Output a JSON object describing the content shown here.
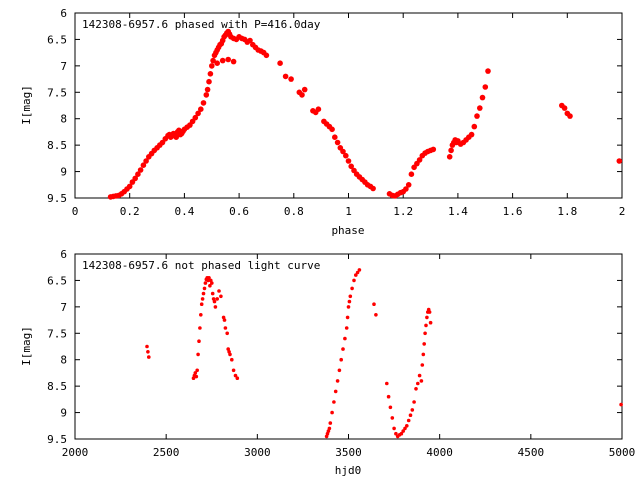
{
  "chart_data": [
    {
      "type": "scatter",
      "title": "142308-6957.6 phased with P=416.0day",
      "xlabel": "phase",
      "ylabel": "I[mag]",
      "xlim": [
        0,
        2
      ],
      "ylim": [
        9.5,
        6
      ],
      "y_inverted": true,
      "xticks": [
        "0",
        "0.2",
        "0.4",
        "0.6",
        "0.8",
        "1",
        "1.2",
        "1.4",
        "1.6",
        "1.8",
        "2"
      ],
      "yticks": [
        "6",
        "6.5",
        "7",
        "7.5",
        "8",
        "8.5",
        "9",
        "9.5"
      ],
      "grid": false,
      "marker_color": "#ff0000",
      "series": [
        {
          "x": [
            0.13,
            0.14,
            0.15,
            0.16,
            0.17,
            0.18,
            0.19,
            0.2,
            0.21,
            0.22,
            0.23,
            0.24,
            0.25,
            0.26,
            0.27,
            0.28,
            0.29,
            0.3,
            0.31,
            0.32,
            0.33,
            0.34,
            0.345,
            0.35,
            0.355,
            0.36,
            0.365,
            0.37,
            0.375,
            0.38,
            0.385,
            0.39,
            0.395,
            0.4,
            0.41,
            0.42,
            0.43,
            0.44,
            0.45,
            0.46,
            0.47,
            0.48,
            0.485,
            0.49,
            0.495,
            0.5,
            0.505,
            0.51,
            0.515,
            0.52,
            0.525,
            0.53,
            0.535,
            0.54,
            0.545,
            0.55,
            0.555,
            0.56,
            0.565,
            0.57,
            0.58,
            0.59,
            0.6,
            0.61,
            0.62,
            0.63,
            0.64,
            0.65,
            0.66,
            0.67,
            0.68,
            0.69,
            0.7,
            0.52,
            0.54,
            0.56,
            0.58,
            0.75,
            0.77,
            0.79,
            0.82,
            0.83,
            0.84,
            0.87,
            0.88,
            0.89,
            0.91,
            0.92,
            0.93,
            0.94,
            0.95,
            0.96,
            0.97,
            0.98,
            0.99,
            1.0,
            1.01,
            1.02,
            1.03,
            1.04,
            1.05,
            1.06,
            1.07,
            1.08,
            1.09,
            1.15,
            1.16,
            1.17,
            1.18,
            1.19,
            1.2,
            1.21,
            1.22,
            1.23,
            1.24,
            1.25,
            1.26,
            1.27,
            1.28,
            1.29,
            1.3,
            1.31,
            1.37,
            1.375,
            1.38,
            1.385,
            1.39,
            1.395,
            1.4,
            1.41,
            1.42,
            1.43,
            1.44,
            1.45,
            1.46,
            1.47,
            1.48,
            1.49,
            1.5,
            1.51,
            1.78,
            1.79,
            1.8,
            1.81,
            1.99
          ],
          "y": [
            9.48,
            9.47,
            9.46,
            9.45,
            9.42,
            9.38,
            9.33,
            9.28,
            9.2,
            9.13,
            9.05,
            8.97,
            8.88,
            8.8,
            8.72,
            8.66,
            8.6,
            8.55,
            8.5,
            8.45,
            8.38,
            8.32,
            8.3,
            8.35,
            8.32,
            8.28,
            8.3,
            8.35,
            8.25,
            8.22,
            8.3,
            8.28,
            8.24,
            8.2,
            8.16,
            8.12,
            8.05,
            7.98,
            7.9,
            7.82,
            7.7,
            7.55,
            7.45,
            7.3,
            7.15,
            7.0,
            6.9,
            6.8,
            6.75,
            6.7,
            6.65,
            6.6,
            6.58,
            6.52,
            6.45,
            6.42,
            6.38,
            6.35,
            6.4,
            6.45,
            6.48,
            6.5,
            6.45,
            6.48,
            6.5,
            6.55,
            6.52,
            6.6,
            6.65,
            6.7,
            6.72,
            6.75,
            6.8,
            6.95,
            6.9,
            6.88,
            6.92,
            6.95,
            7.2,
            7.25,
            7.5,
            7.55,
            7.45,
            7.85,
            7.88,
            7.82,
            8.05,
            8.1,
            8.15,
            8.2,
            8.35,
            8.45,
            8.55,
            8.62,
            8.7,
            8.8,
            8.9,
            8.98,
            9.05,
            9.1,
            9.15,
            9.2,
            9.25,
            9.28,
            9.32,
            9.42,
            9.45,
            9.46,
            9.43,
            9.4,
            9.38,
            9.33,
            9.25,
            9.05,
            8.92,
            8.85,
            8.78,
            8.7,
            8.65,
            8.62,
            8.6,
            8.58,
            8.72,
            8.6,
            8.5,
            8.45,
            8.4,
            8.45,
            8.42,
            8.48,
            8.45,
            8.4,
            8.35,
            8.3,
            8.15,
            7.95,
            7.8,
            7.6,
            7.4,
            7.1,
            7.75,
            7.8,
            7.9,
            7.95,
            8.8
          ]
        }
      ]
    },
    {
      "type": "scatter",
      "title": "142308-6957.6 not phased light curve",
      "xlabel": "hjd0",
      "ylabel": "I[mag]",
      "xlim": [
        2000,
        5000
      ],
      "ylim": [
        9.5,
        6
      ],
      "y_inverted": true,
      "xticks": [
        "2000",
        "2500",
        "3000",
        "3500",
        "4000",
        "4500",
        "5000"
      ],
      "yticks": [
        "6",
        "6.5",
        "7",
        "7.5",
        "8",
        "8.5",
        "9",
        "9.5"
      ],
      "grid": false,
      "marker_color": "#ff0000",
      "series": [
        {
          "x": [
            2395,
            2400,
            2405,
            2650,
            2655,
            2660,
            2665,
            2670,
            2675,
            2680,
            2685,
            2690,
            2695,
            2700,
            2705,
            2710,
            2715,
            2720,
            2725,
            2730,
            2735,
            2740,
            2745,
            2750,
            2755,
            2760,
            2765,
            2770,
            2780,
            2790,
            2800,
            2815,
            2820,
            2825,
            2835,
            2840,
            2845,
            2850,
            2860,
            2870,
            2880,
            2890,
            3380,
            3385,
            3390,
            3395,
            3400,
            3410,
            3420,
            3430,
            3440,
            3450,
            3460,
            3470,
            3480,
            3490,
            3495,
            3500,
            3505,
            3510,
            3520,
            3530,
            3540,
            3550,
            3560,
            3640,
            3650,
            3710,
            3720,
            3730,
            3740,
            3750,
            3760,
            3770,
            3780,
            3790,
            3800,
            3810,
            3820,
            3830,
            3840,
            3850,
            3860,
            3870,
            3880,
            3890,
            3900,
            3905,
            3910,
            3915,
            3920,
            3925,
            3930,
            3935,
            3940,
            3945,
            3950,
            4995
          ],
          "y": [
            7.75,
            7.85,
            7.95,
            8.35,
            8.3,
            8.25,
            8.32,
            8.2,
            7.9,
            7.65,
            7.4,
            7.15,
            6.95,
            6.85,
            6.75,
            6.65,
            6.55,
            6.48,
            6.45,
            6.5,
            6.45,
            6.6,
            6.5,
            6.55,
            6.75,
            6.85,
            6.9,
            7.0,
            6.85,
            6.7,
            6.8,
            7.2,
            7.25,
            7.4,
            7.5,
            7.8,
            7.85,
            7.9,
            8.0,
            8.2,
            8.3,
            8.35,
            9.45,
            9.4,
            9.35,
            9.3,
            9.2,
            9.0,
            8.8,
            8.6,
            8.4,
            8.2,
            8.0,
            7.8,
            7.6,
            7.4,
            7.2,
            7.0,
            6.9,
            6.8,
            6.65,
            6.5,
            6.4,
            6.35,
            6.3,
            6.95,
            7.15,
            8.45,
            8.7,
            8.9,
            9.1,
            9.3,
            9.4,
            9.45,
            9.42,
            9.4,
            9.35,
            9.3,
            9.25,
            9.15,
            9.05,
            8.95,
            8.8,
            8.55,
            8.45,
            8.3,
            8.4,
            8.1,
            7.9,
            7.7,
            7.5,
            7.35,
            7.2,
            7.1,
            7.05,
            7.1,
            7.3,
            8.85
          ]
        }
      ]
    }
  ]
}
